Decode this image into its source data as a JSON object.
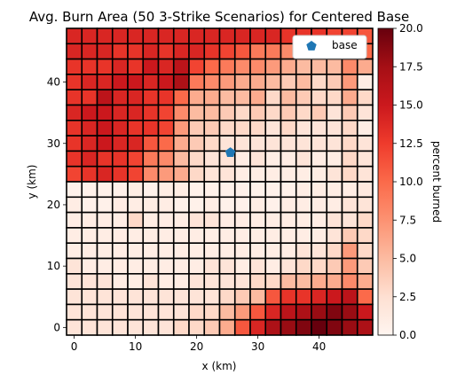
{
  "chart_data": {
    "type": "heatmap",
    "title": "Avg. Burn Area (50 3-Strike Scenarios) for Centered Base",
    "xlabel": "x (km)",
    "ylabel": "y (km)",
    "xlim": [
      -1.25,
      48.75
    ],
    "ylim": [
      -1.25,
      48.75
    ],
    "x_ticks": [
      0,
      10,
      20,
      30,
      40
    ],
    "y_ticks": [
      0,
      10,
      20,
      30,
      40
    ],
    "cell_centers": [
      0,
      2.5,
      5,
      7.5,
      10,
      12.5,
      15,
      17.5,
      20,
      22.5,
      25,
      27.5,
      30,
      32.5,
      35,
      37.5,
      40,
      42.5,
      45,
      47.5
    ],
    "grid_lines": true,
    "colormap": "Reds",
    "colorbar": {
      "label": "percent burned",
      "range": [
        0,
        20
      ],
      "ticks": [
        "0.0",
        "2.5",
        "5.0",
        "7.5",
        "10.0",
        "12.5",
        "15.0",
        "17.5",
        "20.0"
      ]
    },
    "legend": {
      "placement": "upper-right",
      "entries": [
        {
          "label": "base",
          "marker": "pentagon",
          "color": "#1f77b4"
        }
      ]
    },
    "base_marker": {
      "x": 25.5,
      "y": 28.5
    },
    "z_rows_top_to_bottom": [
      [
        14,
        14,
        14,
        14,
        14,
        14,
        14,
        14,
        14,
        14,
        14,
        14,
        14,
        14,
        13,
        13,
        13,
        12,
        12,
        11
      ],
      [
        14,
        14,
        14,
        13,
        13,
        14,
        13,
        14,
        14,
        13,
        12,
        11,
        9,
        9,
        8,
        8,
        7,
        7,
        11,
        10
      ],
      [
        13,
        13,
        13,
        14,
        13,
        15,
        14,
        16,
        12,
        10,
        9,
        8,
        8,
        7,
        6,
        5,
        5,
        5,
        8,
        6
      ],
      [
        13,
        14,
        14,
        15,
        15,
        14,
        15,
        17,
        9,
        8,
        7,
        6,
        6,
        5,
        4,
        5,
        3,
        4,
        7,
        1
      ],
      [
        13,
        13,
        16,
        14,
        14,
        13,
        13,
        10,
        6,
        6,
        5,
        5,
        6,
        3,
        5,
        4,
        3,
        3,
        6,
        3
      ],
      [
        14,
        15,
        15,
        14,
        14,
        13,
        12,
        8,
        5,
        5,
        4,
        3,
        4,
        3,
        4,
        3,
        4,
        2,
        4,
        2
      ],
      [
        13,
        14,
        15,
        14,
        13,
        13,
        12,
        7,
        4,
        4,
        3,
        3,
        3,
        2,
        3,
        2,
        2,
        2,
        3,
        1
      ],
      [
        13,
        14,
        15,
        14,
        14,
        11,
        10,
        6,
        4,
        3,
        2,
        2,
        2,
        2,
        2,
        2,
        2,
        2,
        3,
        2
      ],
      [
        13,
        14,
        13,
        13,
        12,
        9,
        8,
        5,
        3,
        2,
        2,
        1,
        2,
        1,
        1,
        2,
        1,
        1,
        3,
        2
      ],
      [
        12,
        13,
        14,
        13,
        12,
        8,
        7,
        6,
        3,
        2,
        2,
        1,
        1,
        1,
        1,
        1,
        1,
        2,
        3,
        2
      ],
      [
        0.5,
        0.5,
        0.5,
        0.5,
        1,
        0.5,
        1,
        1,
        0.5,
        0.5,
        0.5,
        0.5,
        0.5,
        0.5,
        0.5,
        1,
        1,
        1,
        1,
        1.5
      ],
      [
        1,
        0.5,
        0.5,
        1,
        1,
        1,
        1,
        0.5,
        0.5,
        1,
        0.5,
        0.5,
        1,
        0.5,
        1,
        1,
        1,
        1,
        2,
        2
      ],
      [
        1,
        1,
        1,
        1,
        3,
        1,
        1,
        1,
        2,
        2,
        1,
        1,
        1,
        1,
        1,
        1,
        1,
        2,
        2,
        3
      ],
      [
        1,
        1,
        1,
        1,
        1,
        1,
        1,
        1,
        1,
        1,
        1,
        1,
        1,
        1,
        1,
        1,
        1,
        2,
        4,
        3
      ],
      [
        1,
        1,
        1,
        1,
        1,
        1,
        1,
        1,
        1,
        1,
        1,
        1,
        1,
        1,
        1,
        2,
        2,
        3,
        7,
        3
      ],
      [
        2,
        1,
        1,
        1,
        1,
        1,
        1,
        1,
        1,
        2,
        2,
        1,
        2,
        1,
        2,
        3,
        3,
        4,
        7,
        4
      ],
      [
        2,
        2,
        2,
        1,
        1,
        2,
        1,
        1,
        2,
        2,
        2,
        2,
        3,
        3,
        5,
        5,
        6,
        6,
        8,
        6
      ],
      [
        2,
        2,
        2,
        2,
        2,
        2,
        2,
        2,
        2,
        2,
        3,
        4,
        5,
        11,
        13,
        13,
        14,
        15,
        16,
        10
      ],
      [
        2,
        2,
        2,
        2,
        2,
        2,
        2,
        2,
        3,
        3,
        5,
        7,
        11,
        14,
        16,
        17,
        18,
        19,
        18,
        15
      ],
      [
        2,
        2,
        2,
        2,
        2,
        2,
        2,
        3,
        3,
        4,
        6,
        11,
        14,
        17,
        18,
        19,
        20,
        19,
        18,
        17
      ]
    ]
  }
}
